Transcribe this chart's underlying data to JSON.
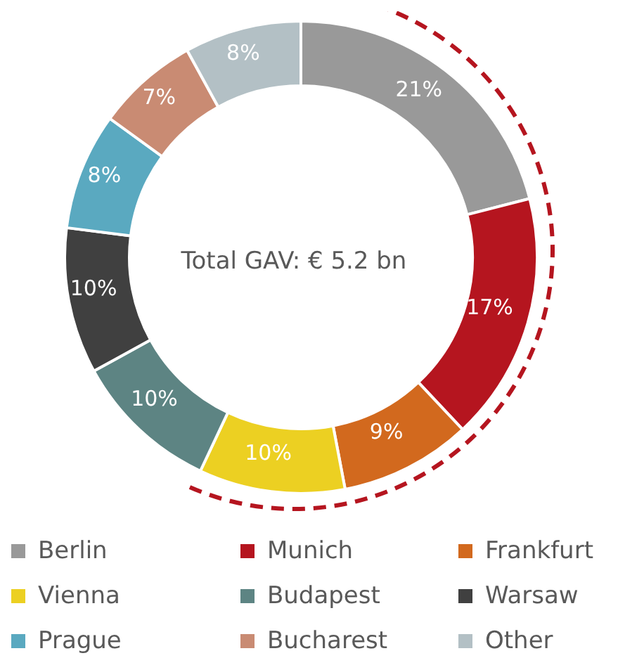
{
  "chart_data": {
    "type": "donut",
    "categories": [
      "Berlin",
      "Munich",
      "Frankfurt",
      "Vienna",
      "Budapest",
      "Warsaw",
      "Prague",
      "Bucharest",
      "Other"
    ],
    "values": [
      21,
      17,
      9,
      10,
      10,
      10,
      8,
      7,
      8
    ],
    "colors": [
      "#999999",
      "#b5151f",
      "#d2691e",
      "#ecd022",
      "#5d8483",
      "#404040",
      "#5aa9c0",
      "#c98b73",
      "#b3c0c5"
    ],
    "value_labels": [
      "21%",
      "17%",
      "9%",
      "10%",
      "10%",
      "10%",
      "8%",
      "7%",
      "8%"
    ],
    "annotations": [
      "Total GAV: € 5.2 bn"
    ],
    "legend": "bottom"
  }
}
